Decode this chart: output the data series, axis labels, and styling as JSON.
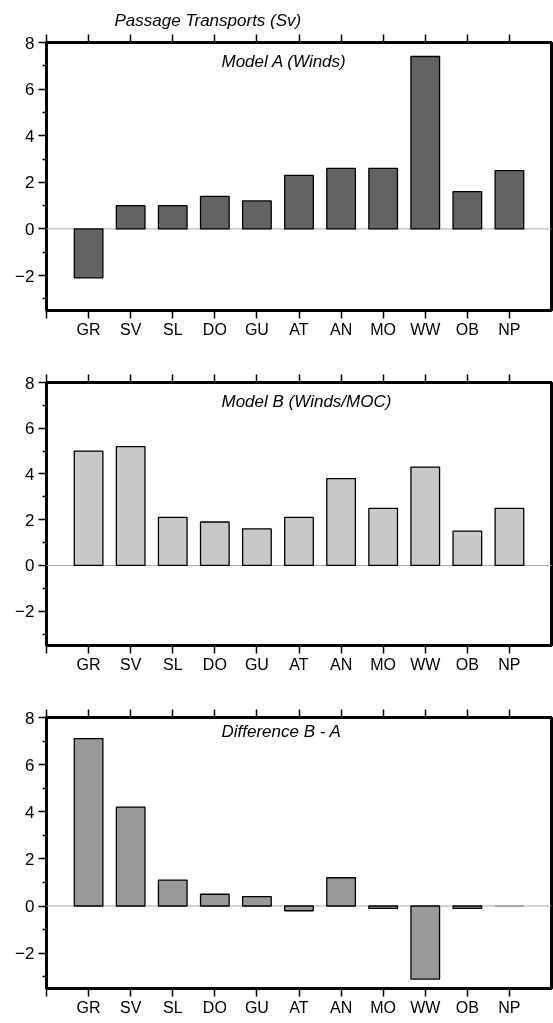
{
  "chart_data": [
    {
      "type": "bar",
      "title": "Passage Transports (Sv)",
      "annotations": [
        "Model A (Winds)"
      ],
      "categories": [
        "GR",
        "SV",
        "SL",
        "DO",
        "GU",
        "AT",
        "AN",
        "MO",
        "WW",
        "OB",
        "NP"
      ],
      "values": [
        -2.1,
        1.0,
        1.0,
        1.4,
        1.2,
        2.3,
        2.6,
        2.6,
        7.4,
        1.6,
        2.5
      ],
      "color": "#636363",
      "ylim": [
        -3.5,
        8
      ],
      "yticks": [
        -2,
        0,
        2,
        4,
        6,
        8
      ],
      "ref_lines": [
        {
          "axis": "y",
          "value": 0,
          "color": "#aaaaaa"
        }
      ]
    },
    {
      "type": "bar",
      "annotations": [
        "Model B (Winds/MOC)"
      ],
      "categories": [
        "GR",
        "SV",
        "SL",
        "DO",
        "GU",
        "AT",
        "AN",
        "MO",
        "WW",
        "OB",
        "NP"
      ],
      "values": [
        5.0,
        5.2,
        2.1,
        1.9,
        1.6,
        2.1,
        3.8,
        2.5,
        4.3,
        1.5,
        2.5
      ],
      "color": "#c8c8c8",
      "ylim": [
        -3.5,
        8
      ],
      "yticks": [
        -2,
        0,
        2,
        4,
        6,
        8
      ],
      "ref_lines": [
        {
          "axis": "y",
          "value": 0,
          "color": "#aaaaaa"
        }
      ]
    },
    {
      "type": "bar",
      "annotations": [
        "Difference B - A"
      ],
      "categories": [
        "GR",
        "SV",
        "SL",
        "DO",
        "GU",
        "AT",
        "AN",
        "MO",
        "WW",
        "OB",
        "NP"
      ],
      "values": [
        7.1,
        4.2,
        1.1,
        0.5,
        0.4,
        -0.2,
        1.2,
        -0.1,
        -3.1,
        -0.1,
        0.0
      ],
      "color": "#999999",
      "ylim": [
        -3.5,
        8
      ],
      "yticks": [
        -2,
        0,
        2,
        4,
        6,
        8
      ],
      "ref_lines": [
        {
          "axis": "y",
          "value": 0,
          "color": "#aaaaaa"
        }
      ]
    }
  ]
}
